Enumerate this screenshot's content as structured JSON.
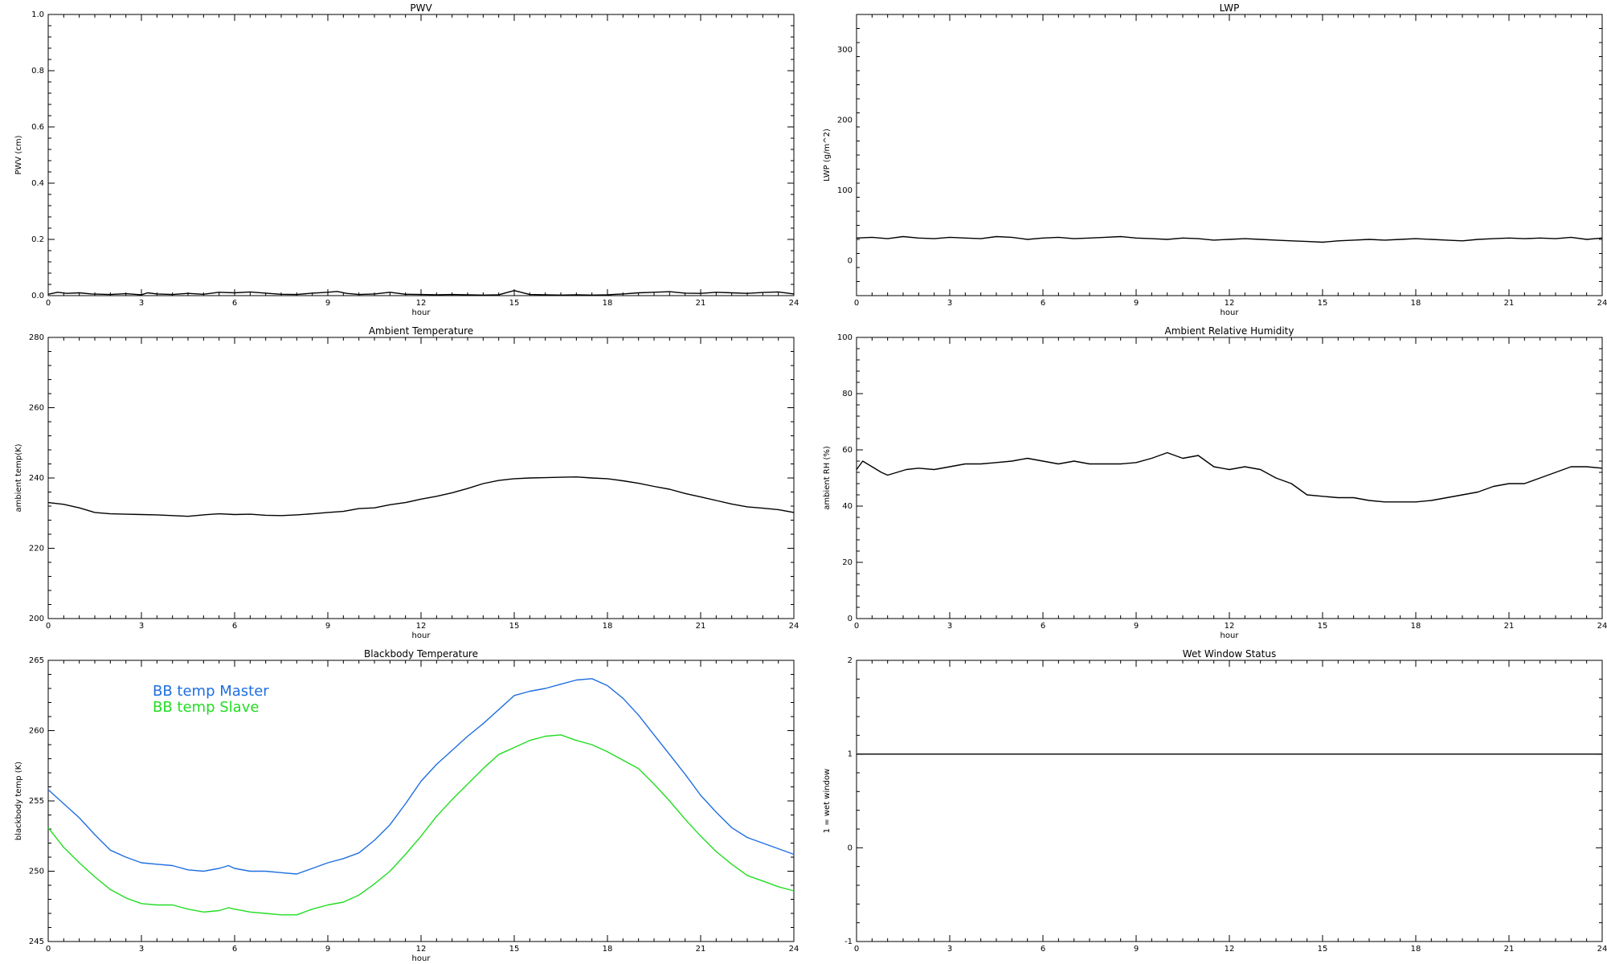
{
  "chart_data": [
    {
      "type": "line",
      "title": "PWV",
      "xlabel": "hour",
      "ylabel": "PWV (cm)",
      "xlim": [
        0,
        24
      ],
      "ylim": [
        0,
        1
      ],
      "x_ticks": [
        0,
        3,
        6,
        9,
        12,
        15,
        18,
        21,
        24
      ],
      "y_ticks": [
        0.0,
        0.2,
        0.4,
        0.6,
        0.8,
        1.0
      ],
      "y_tick_labels": [
        "0.0",
        "0.2",
        "0.4",
        "0.6",
        "0.8",
        "1.0"
      ],
      "series": [
        {
          "color": "#000000",
          "x": [
            0,
            0.3,
            0.6,
            1.0,
            1.4,
            2.0,
            2.5,
            3.0,
            3.2,
            3.5,
            4.0,
            4.5,
            5.0,
            5.5,
            6.0,
            6.5,
            7.0,
            7.5,
            8.0,
            8.5,
            9.0,
            9.3,
            9.6,
            10.0,
            10.5,
            11.0,
            11.5,
            12.0,
            12.5,
            13.0,
            13.5,
            14.0,
            14.5,
            15.0,
            15.5,
            16.0,
            16.5,
            17.0,
            17.5,
            18.0,
            18.5,
            19.0,
            19.5,
            20.0,
            20.5,
            21.0,
            21.5,
            22.0,
            22.5,
            23.0,
            23.5,
            24.0
          ],
          "y": [
            0.005,
            0.012,
            0.008,
            0.01,
            0.006,
            0.004,
            0.007,
            0.003,
            0.01,
            0.006,
            0.004,
            0.008,
            0.005,
            0.012,
            0.01,
            0.013,
            0.009,
            0.005,
            0.004,
            0.009,
            0.012,
            0.015,
            0.008,
            0.004,
            0.006,
            0.012,
            0.005,
            0.004,
            0.003,
            0.004,
            0.003,
            0.002,
            0.003,
            0.018,
            0.004,
            0.003,
            0.002,
            0.003,
            0.002,
            0.003,
            0.006,
            0.01,
            0.012,
            0.014,
            0.009,
            0.008,
            0.012,
            0.01,
            0.008,
            0.011,
            0.013,
            0.006
          ]
        }
      ]
    },
    {
      "type": "line",
      "title": "LWP",
      "xlabel": "hour",
      "ylabel": "LWP (g/m^2)",
      "xlim": [
        0,
        24
      ],
      "ylim": [
        -50,
        350
      ],
      "x_ticks": [
        0,
        3,
        6,
        9,
        12,
        15,
        18,
        21,
        24
      ],
      "y_ticks": [
        0,
        100,
        200,
        300
      ],
      "y_tick_labels": [
        "0",
        "100",
        "200",
        "300"
      ],
      "series": [
        {
          "color": "#000000",
          "x": [
            0,
            0.5,
            1.0,
            1.5,
            2.0,
            2.5,
            3.0,
            3.5,
            4.0,
            4.5,
            5.0,
            5.5,
            6.0,
            6.5,
            7.0,
            7.5,
            8.0,
            8.5,
            9.0,
            9.5,
            10.0,
            10.5,
            11.0,
            11.5,
            12.0,
            12.5,
            13.0,
            13.5,
            14.0,
            14.5,
            15.0,
            15.5,
            16.0,
            16.5,
            17.0,
            17.5,
            18.0,
            18.5,
            19.0,
            19.5,
            20.0,
            20.5,
            21.0,
            21.5,
            22.0,
            22.5,
            23.0,
            23.5,
            24.0
          ],
          "y": [
            32,
            33,
            31,
            34,
            32,
            31,
            33,
            32,
            31,
            34,
            33,
            30,
            32,
            33,
            31,
            32,
            33,
            34,
            32,
            31,
            30,
            32,
            31,
            29,
            30,
            31,
            30,
            29,
            28,
            27,
            26,
            28,
            29,
            30,
            29,
            30,
            31,
            30,
            29,
            28,
            30,
            31,
            32,
            31,
            32,
            31,
            33,
            30,
            32
          ]
        }
      ]
    },
    {
      "type": "line",
      "title": "Ambient Temperature",
      "xlabel": "hour",
      "ylabel": "ambient temp(K)",
      "xlim": [
        0,
        24
      ],
      "ylim": [
        200,
        280
      ],
      "x_ticks": [
        0,
        3,
        6,
        9,
        12,
        15,
        18,
        21,
        24
      ],
      "y_ticks": [
        200,
        220,
        240,
        260,
        280
      ],
      "y_tick_labels": [
        "200",
        "220",
        "240",
        "260",
        "280"
      ],
      "series": [
        {
          "color": "#000000",
          "x": [
            0,
            0.5,
            1.0,
            1.5,
            2.0,
            2.5,
            3.0,
            3.5,
            4.0,
            4.5,
            5.0,
            5.5,
            6.0,
            6.5,
            7.0,
            7.5,
            8.0,
            8.5,
            9.0,
            9.5,
            10.0,
            10.5,
            11.0,
            11.5,
            12.0,
            12.5,
            13.0,
            13.5,
            14.0,
            14.5,
            15.0,
            15.5,
            16.0,
            16.5,
            17.0,
            17.5,
            18.0,
            18.5,
            19.0,
            19.5,
            20.0,
            20.5,
            21.0,
            21.5,
            22.0,
            22.5,
            23.0,
            23.5,
            24.0
          ],
          "y": [
            233,
            232.5,
            231.5,
            230.2,
            229.8,
            229.7,
            229.6,
            229.5,
            229.3,
            229.1,
            229.5,
            229.8,
            229.6,
            229.7,
            229.4,
            229.3,
            229.5,
            229.8,
            230.2,
            230.5,
            231.3,
            231.5,
            232.4,
            233.0,
            234.0,
            234.8,
            235.8,
            237.0,
            238.4,
            239.3,
            239.8,
            240.0,
            240.1,
            240.2,
            240.3,
            240.0,
            239.8,
            239.2,
            238.5,
            237.6,
            236.8,
            235.6,
            234.6,
            233.6,
            232.6,
            231.8,
            231.4,
            231.0,
            230.2
          ]
        }
      ]
    },
    {
      "type": "line",
      "title": "Ambient Relative Humidity",
      "xlabel": "hour",
      "ylabel": "ambient RH (%)",
      "xlim": [
        0,
        24
      ],
      "ylim": [
        0,
        100
      ],
      "x_ticks": [
        0,
        3,
        6,
        9,
        12,
        15,
        18,
        21,
        24
      ],
      "y_ticks": [
        0,
        20,
        40,
        60,
        80,
        100
      ],
      "y_tick_labels": [
        "0",
        "20",
        "40",
        "60",
        "80",
        "100"
      ],
      "series": [
        {
          "color": "#000000",
          "x": [
            0,
            0.2,
            0.5,
            0.8,
            1.0,
            1.3,
            1.6,
            2.0,
            2.5,
            3.0,
            3.5,
            4.0,
            4.5,
            5.0,
            5.5,
            6.0,
            6.5,
            7.0,
            7.5,
            8.0,
            8.5,
            9.0,
            9.5,
            10.0,
            10.5,
            11.0,
            11.5,
            12.0,
            12.5,
            13.0,
            13.5,
            14.0,
            14.5,
            15.0,
            15.5,
            16.0,
            16.5,
            17.0,
            17.5,
            18.0,
            18.5,
            19.0,
            19.5,
            20.0,
            20.5,
            21.0,
            21.5,
            22.0,
            22.5,
            23.0,
            23.5,
            24.0
          ],
          "y": [
            53,
            56,
            54,
            52,
            51,
            52,
            53,
            53.5,
            53,
            54,
            55,
            55,
            55.5,
            56,
            57,
            56,
            55,
            56,
            55,
            55,
            55,
            55.5,
            57,
            59,
            57,
            58,
            54,
            53,
            54,
            53,
            50,
            48,
            44,
            43.5,
            43,
            43,
            42,
            41.5,
            41.5,
            41.5,
            42,
            43,
            44,
            45,
            47,
            48,
            48,
            50,
            52,
            54,
            54,
            53.5
          ]
        }
      ]
    },
    {
      "type": "line",
      "title": "Blackbody Temperature",
      "xlabel": "hour",
      "ylabel": "blackbody temp (K)",
      "xlim": [
        0,
        24
      ],
      "ylim": [
        245,
        265
      ],
      "x_ticks": [
        0,
        3,
        6,
        9,
        12,
        15,
        18,
        21,
        24
      ],
      "y_ticks": [
        245,
        250,
        255,
        260,
        265
      ],
      "y_tick_labels": [
        "245",
        "250",
        "255",
        "260",
        "265"
      ],
      "legend": [
        "BB temp Master",
        "BB temp Slave"
      ],
      "series": [
        {
          "name": "BB temp Master",
          "color": "#1f6fe0",
          "x": [
            0,
            0.5,
            1.0,
            1.5,
            2.0,
            2.5,
            3.0,
            3.5,
            4.0,
            4.5,
            5.0,
            5.5,
            5.8,
            6.0,
            6.5,
            7.0,
            7.5,
            8.0,
            8.5,
            9.0,
            9.5,
            10.0,
            10.5,
            11.0,
            11.5,
            12.0,
            12.5,
            13.0,
            13.5,
            14.0,
            14.5,
            15.0,
            15.5,
            16.0,
            16.5,
            17.0,
            17.5,
            18.0,
            18.5,
            19.0,
            19.5,
            20.0,
            20.5,
            21.0,
            21.5,
            22.0,
            22.5,
            23.0,
            23.5,
            24.0
          ],
          "y": [
            255.8,
            254.8,
            253.8,
            252.6,
            251.5,
            251.0,
            250.6,
            250.5,
            250.4,
            250.1,
            250.0,
            250.2,
            250.4,
            250.2,
            250.0,
            250.0,
            249.9,
            249.8,
            250.2,
            250.6,
            250.9,
            251.3,
            252.2,
            253.3,
            254.8,
            256.4,
            257.6,
            258.6,
            259.6,
            260.5,
            261.5,
            262.5,
            262.8,
            263.0,
            263.3,
            263.6,
            263.7,
            263.2,
            262.3,
            261.1,
            259.7,
            258.3,
            256.9,
            255.4,
            254.2,
            253.1,
            252.4,
            252.0,
            251.6,
            251.2
          ]
        },
        {
          "name": "BB temp Slave",
          "color": "#22dd22",
          "x": [
            0,
            0.5,
            1.0,
            1.5,
            2.0,
            2.5,
            3.0,
            3.5,
            4.0,
            4.5,
            5.0,
            5.5,
            5.8,
            6.0,
            6.5,
            7.0,
            7.5,
            8.0,
            8.5,
            9.0,
            9.5,
            10.0,
            10.5,
            11.0,
            11.5,
            12.0,
            12.5,
            13.0,
            13.5,
            14.0,
            14.5,
            15.0,
            15.5,
            16.0,
            16.5,
            17.0,
            17.5,
            18.0,
            18.5,
            19.0,
            19.5,
            20.0,
            20.5,
            21.0,
            21.5,
            22.0,
            22.5,
            23.0,
            23.5,
            24.0
          ],
          "y": [
            253.1,
            251.7,
            250.6,
            249.6,
            248.7,
            248.1,
            247.7,
            247.6,
            247.6,
            247.3,
            247.1,
            247.2,
            247.4,
            247.3,
            247.1,
            247.0,
            246.9,
            246.9,
            247.3,
            247.6,
            247.8,
            248.3,
            249.1,
            250.0,
            251.2,
            252.5,
            253.9,
            255.1,
            256.2,
            257.3,
            258.3,
            258.8,
            259.3,
            259.6,
            259.7,
            259.3,
            259.0,
            258.5,
            257.9,
            257.3,
            256.2,
            255.0,
            253.7,
            252.5,
            251.4,
            250.5,
            249.7,
            249.3,
            248.9,
            248.6
          ]
        }
      ]
    },
    {
      "type": "line",
      "title": "Wet Window Status",
      "xlabel": "",
      "ylabel": "1 = wet window",
      "xlim": [
        0,
        24
      ],
      "ylim": [
        -1,
        2
      ],
      "x_ticks": [
        0,
        3,
        6,
        9,
        12,
        15,
        18,
        21,
        24
      ],
      "y_ticks": [
        -1,
        0,
        1,
        2
      ],
      "y_tick_labels": [
        "-1",
        "0",
        "1",
        "2"
      ],
      "series": [
        {
          "color": "#000000",
          "x": [
            0,
            24
          ],
          "y": [
            1,
            1
          ]
        }
      ]
    }
  ]
}
